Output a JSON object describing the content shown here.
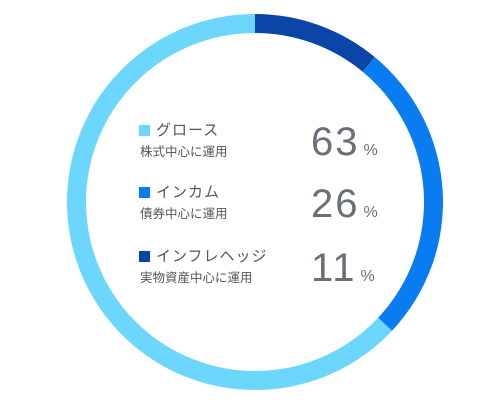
{
  "chart_data": {
    "type": "pie",
    "style": "donut",
    "categories": [
      "グロース",
      "インカム",
      "インフレヘッジ"
    ],
    "values": [
      63,
      26,
      11
    ],
    "unit": "%",
    "descriptions": [
      "株式中心に運用",
      "債券中心に運用",
      "実物資産中心に運用"
    ],
    "colors": [
      "#6dd6fc",
      "#0a7cf2",
      "#0b45a8"
    ],
    "start": "top",
    "direction": "counterclockwise",
    "legend_placement": "center"
  }
}
